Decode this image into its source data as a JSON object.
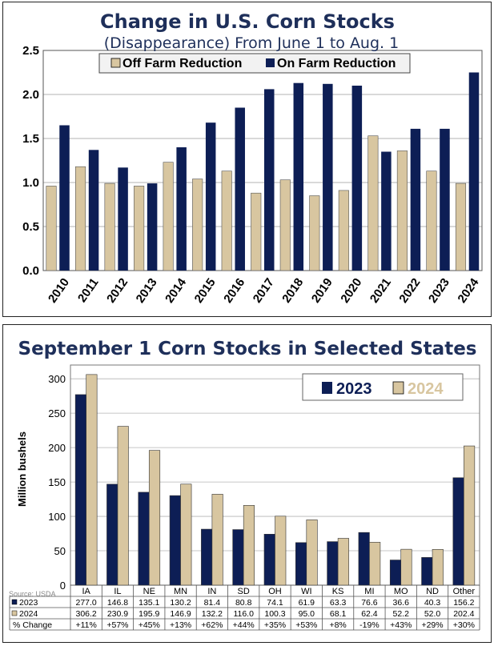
{
  "chart_data": [
    {
      "type": "bar",
      "title": "Change in U.S. Corn Stocks",
      "subtitle": "(Disappearance) From June 1 to Aug. 1",
      "categories": [
        "2010",
        "2011",
        "2012",
        "2013",
        "2014",
        "2015",
        "2016",
        "2017",
        "2018",
        "2019",
        "2020",
        "2021",
        "2022",
        "2023",
        "2024"
      ],
      "series": [
        {
          "name": "Off Farm Reduction",
          "color": "#d8c6a0",
          "values": [
            0.96,
            1.18,
            0.99,
            0.96,
            1.23,
            1.04,
            1.13,
            0.88,
            1.03,
            0.85,
            0.91,
            1.53,
            1.36,
            1.13,
            0.99
          ]
        },
        {
          "name": "On Farm Reduction",
          "color": "#0d1e55",
          "values": [
            1.65,
            1.37,
            1.17,
            0.99,
            1.4,
            1.68,
            1.85,
            2.06,
            2.13,
            2.12,
            2.1,
            1.35,
            1.61,
            1.61,
            2.25
          ]
        }
      ],
      "ylim": [
        0,
        2.5
      ],
      "yticks": [
        "0.0",
        "0.5",
        "1.0",
        "1.5",
        "2.0",
        "2.5"
      ],
      "grid": true,
      "legend": "top"
    },
    {
      "type": "bar",
      "title": "September 1 Corn Stocks in Selected States",
      "ylabel": "Million bushels",
      "categories": [
        "IA",
        "IL",
        "NE",
        "MN",
        "IN",
        "SD",
        "OH",
        "WI",
        "KS",
        "MI",
        "MO",
        "ND",
        "Other"
      ],
      "series": [
        {
          "name": "2023",
          "color": "#0d1e55",
          "values": [
            277.0,
            146.8,
            135.1,
            130.2,
            81.4,
            80.8,
            74.1,
            61.9,
            63.3,
            76.6,
            36.6,
            40.3,
            156.2
          ]
        },
        {
          "name": "2024",
          "color": "#d8c6a0",
          "values": [
            306.2,
            230.9,
            195.9,
            146.9,
            132.2,
            116.0,
            100.3,
            95.0,
            68.1,
            62.4,
            52.2,
            52.0,
            202.4
          ]
        }
      ],
      "ylim": [
        0,
        320
      ],
      "yticks": [
        "0",
        "50",
        "100",
        "150",
        "200",
        "250",
        "300"
      ],
      "grid": true,
      "legend": "top-right",
      "table": {
        "rows": [
          {
            "label": "2023",
            "values": [
              "277.0",
              "146.8",
              "135.1",
              "130.2",
              "81.4",
              "80.8",
              "74.1",
              "61.9",
              "63.3",
              "76.6",
              "36.6",
              "40.3",
              "156.2"
            ]
          },
          {
            "label": "2024",
            "values": [
              "306.2",
              "230.9",
              "195.9",
              "146.9",
              "132.2",
              "116.0",
              "100.3",
              "95.0",
              "68.1",
              "62.4",
              "52.2",
              "52.0",
              "202.4"
            ]
          },
          {
            "label": "% Change",
            "values": [
              "+11%",
              "+57%",
              "+45%",
              "+13%",
              "+62%",
              "+44%",
              "+35%",
              "+53%",
              "+8%",
              "-19%",
              "+43%",
              "+29%",
              "+30%"
            ]
          }
        ]
      },
      "source": "Source: USDA"
    }
  ]
}
